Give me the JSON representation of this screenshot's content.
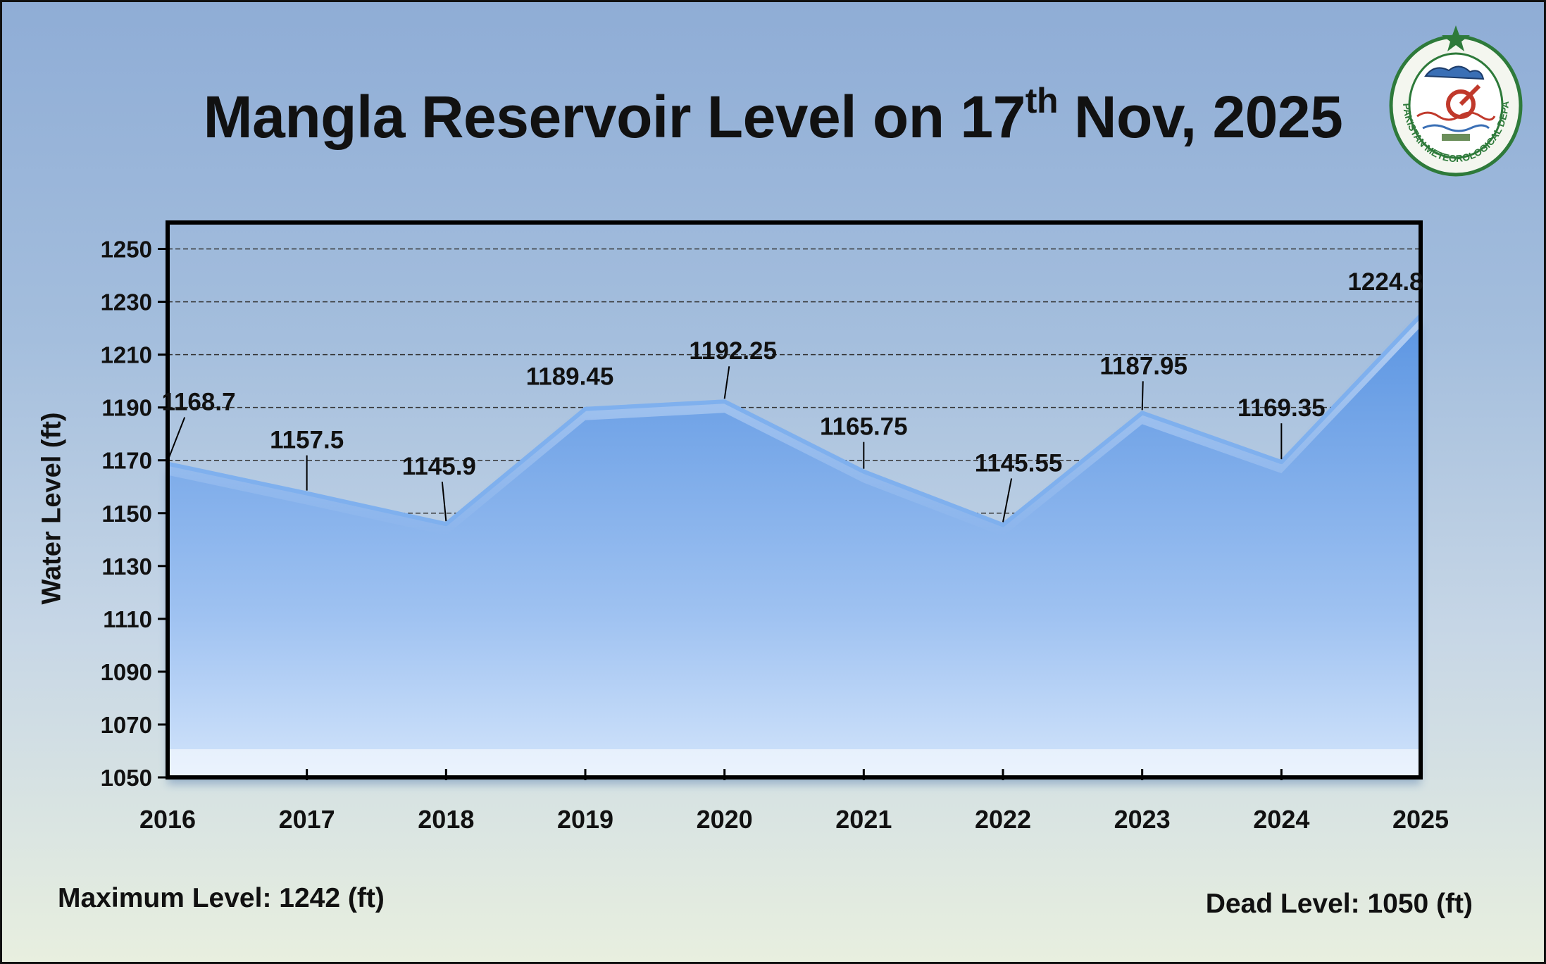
{
  "title": {
    "main": "Mangla Reservoir Level on 17",
    "ordinal_suffix": "th",
    "rest": " Nov, 2025"
  },
  "logo": {
    "name": "pakistan-meteorological-department-logo",
    "ring_text": "PAKISTAN METEOROLOGICAL DEPARTMENT"
  },
  "footer": {
    "max_level": "Maximum Level: 1242 (ft)",
    "dead_level": "Dead Level: 1050 (ft)"
  },
  "chart_data": {
    "type": "area",
    "title": "Mangla Reservoir Level on 17th Nov, 2025",
    "xlabel": "",
    "ylabel": "Water Level (ft)",
    "categories": [
      "2016",
      "2017",
      "2018",
      "2019",
      "2020",
      "2021",
      "2022",
      "2023",
      "2024",
      "2025"
    ],
    "values": [
      1168.7,
      1157.5,
      1145.9,
      1189.45,
      1192.25,
      1165.75,
      1145.55,
      1187.95,
      1169.35,
      1224.8
    ],
    "data_labels": [
      "1168.7",
      "1157.5",
      "1145.9",
      "1189.45",
      "1192.25",
      "1165.75",
      "1145.55",
      "1187.95",
      "1169.35",
      "1224.8"
    ],
    "ylim": [
      1050,
      1260
    ],
    "yticks": [
      1050,
      1070,
      1090,
      1110,
      1130,
      1150,
      1170,
      1190,
      1210,
      1230,
      1250
    ],
    "grid": "horizontal-dashed",
    "legend": "none",
    "colors": {
      "fill_top": "#5b95e2",
      "fill_bottom": "#d2e4fb",
      "line": "#6fa3e6"
    }
  }
}
